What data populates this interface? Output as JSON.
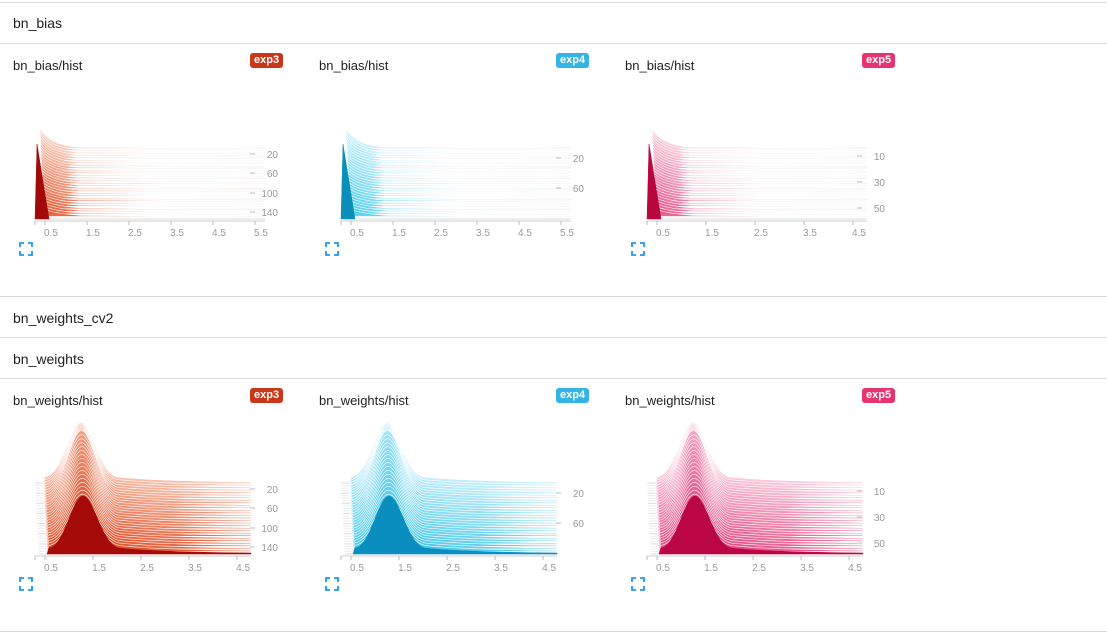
{
  "groups": {
    "bn_bias": {
      "title": "bn_bias"
    },
    "bn_weights_cv2": {
      "title": "bn_weights_cv2"
    },
    "bn_weights": {
      "title": "bn_weights"
    }
  },
  "cards": {
    "bias_exp3": {
      "title": "bn_bias/hist",
      "run": "exp3",
      "run_color": "#c9371b",
      "x_ticks": [
        "0.5",
        "1.5",
        "2.5",
        "3.5",
        "4.5",
        "5.5"
      ],
      "y_ticks": [
        "20",
        "60",
        "100",
        "140"
      ],
      "color_light": "#fbc9b8",
      "color_dark": "#e8542a",
      "color_base": "#a10a08"
    },
    "bias_exp4": {
      "title": "bn_bias/hist",
      "run": "exp4",
      "run_color": "#33b4e5",
      "x_ticks": [
        "0.5",
        "1.5",
        "2.5",
        "3.5",
        "4.5",
        "5.5"
      ],
      "y_ticks": [
        "20",
        "60"
      ],
      "color_light": "#c3eefb",
      "color_dark": "#4ecdf0",
      "color_base": "#0a8fb8"
    },
    "bias_exp5": {
      "title": "bn_bias/hist",
      "run": "exp5",
      "run_color": "#e8336f",
      "x_ticks": [
        "0.5",
        "1.5",
        "2.5",
        "3.5",
        "4.5"
      ],
      "y_ticks": [
        "10",
        "30",
        "50"
      ],
      "color_light": "#f8c6d8",
      "color_dark": "#ea4f87",
      "color_base": "#b8063f"
    },
    "weights_exp3": {
      "title": "bn_weights/hist",
      "run": "exp3",
      "run_color": "#c9371b",
      "x_ticks": [
        "0.5",
        "1.5",
        "2.5",
        "3.5",
        "4.5"
      ],
      "y_ticks": [
        "20",
        "60",
        "100",
        "140"
      ],
      "color_light": "#f7b7a0",
      "color_dark": "#e34a20",
      "color_base": "#a30a08"
    },
    "weights_exp4": {
      "title": "bn_weights/hist",
      "run": "exp4",
      "run_color": "#33b4e5",
      "x_ticks": [
        "0.5",
        "1.5",
        "2.5",
        "3.5",
        "4.5"
      ],
      "y_ticks": [
        "20",
        "60"
      ],
      "color_light": "#bdebfa",
      "color_dark": "#43c6ec",
      "color_base": "#0a8ebd"
    },
    "weights_exp5": {
      "title": "bn_weights/hist",
      "run": "exp5",
      "run_color": "#e8336f",
      "x_ticks": [
        "0.5",
        "1.5",
        "2.5",
        "3.5",
        "4.5"
      ],
      "y_ticks": [
        "10",
        "30",
        "50"
      ],
      "color_light": "#f9c1d5",
      "color_dark": "#e8427e",
      "color_base": "#bb0645"
    }
  },
  "icons": {
    "expand": "fullscreen-icon"
  }
}
